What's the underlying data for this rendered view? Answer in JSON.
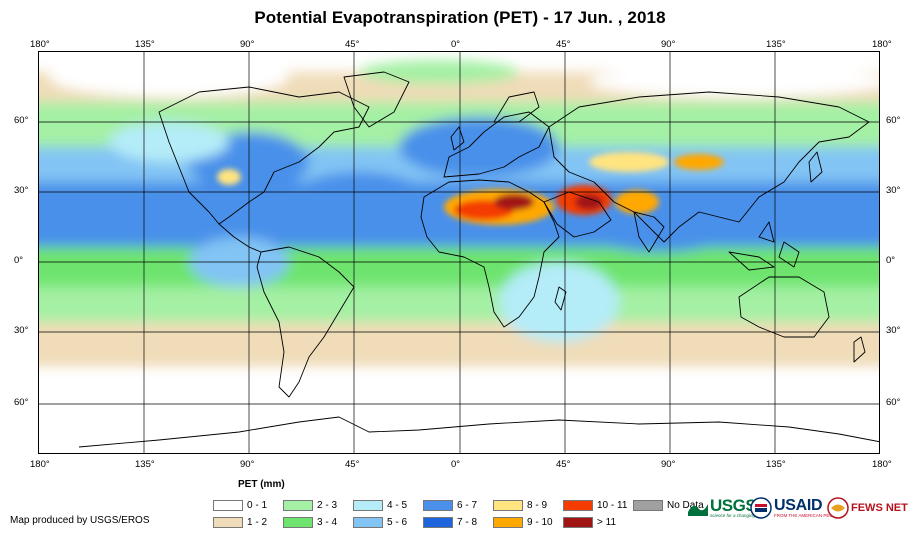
{
  "title": "Potential Evapotranspiration (PET) - 17 Jun. , 2018",
  "lon_ticks": [
    "180°",
    "135°",
    "90°",
    "45°",
    "0°",
    "45°",
    "90°",
    "135°",
    "180°"
  ],
  "lat_ticks": [
    "60°",
    "30°",
    "0°",
    "30°",
    "60°"
  ],
  "legend": {
    "title": "PET (mm)",
    "items": [
      {
        "label": "0 - 1",
        "color": "#ffffff"
      },
      {
        "label": "1 - 2",
        "color": "#f0dcb8"
      },
      {
        "label": "2 - 3",
        "color": "#a4f0a4"
      },
      {
        "label": "3 - 4",
        "color": "#6ee46e"
      },
      {
        "label": "4 - 5",
        "color": "#b4ecf8"
      },
      {
        "label": "5 - 6",
        "color": "#82c4f4"
      },
      {
        "label": "6 - 7",
        "color": "#4a90ea"
      },
      {
        "label": "7 - 8",
        "color": "#1e64dc"
      },
      {
        "label": "8 - 9",
        "color": "#ffe480"
      },
      {
        "label": "9 - 10",
        "color": "#ffa800"
      },
      {
        "label": "10 - 11",
        "color": "#f43c00"
      },
      {
        "label": "> 11",
        "color": "#a01414"
      },
      {
        "label": "No Data",
        "color": "#a0a0a0"
      }
    ]
  },
  "credit": "Map produced by USGS/EROS",
  "logos": {
    "usgs": "USGS",
    "usgs_tagline": "science for a changing world",
    "usaid": "USAID",
    "usaid_tagline": "FROM THE AMERICAN PEOPLE",
    "fews": "FEWS NET"
  }
}
